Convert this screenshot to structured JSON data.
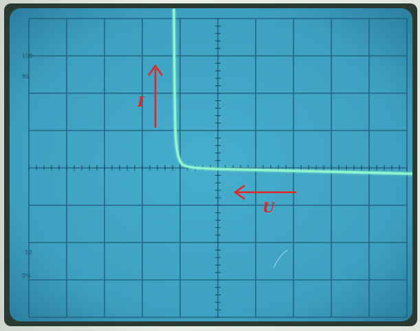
{
  "scene": {
    "description_kind": "oscilloscope-photo",
    "phosphor_color": "#7ff0c0",
    "screen_color": "#3da3c4",
    "grid_color": "#1f5a77",
    "arrow_color": "#e52525"
  },
  "annotations": {
    "current_label": "I",
    "voltage_label": "U"
  },
  "graticule_labels": {
    "top_left_1": "100",
    "top_left_2": "90",
    "bottom_left_1": "10",
    "bottom_left_2": "0%"
  }
}
